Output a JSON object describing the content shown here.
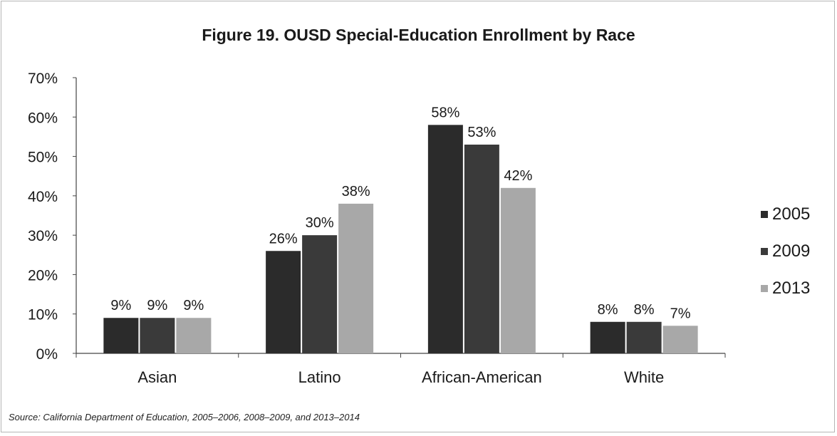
{
  "chart_data": {
    "type": "bar",
    "title": "Figure 19. OUSD Special-Education Enrollment by Race",
    "categories": [
      "Asian",
      "Latino",
      "African-American",
      "White"
    ],
    "series": [
      {
        "name": "2005",
        "values": [
          9,
          26,
          58,
          8
        ],
        "labels": [
          "9%",
          "26%",
          "58%",
          "8%"
        ],
        "color": "#2b2b2b"
      },
      {
        "name": "2009",
        "values": [
          9,
          30,
          53,
          8
        ],
        "labels": [
          "9%",
          "30%",
          "53%",
          "8%"
        ],
        "color": "#3a3a3a"
      },
      {
        "name": "2013",
        "values": [
          9,
          38,
          42,
          7
        ],
        "labels": [
          "9%",
          "38%",
          "42%",
          "7%"
        ],
        "color": "#a8a8a8"
      }
    ],
    "ylim": [
      0,
      70
    ],
    "yticks": [
      "0%",
      "10%",
      "20%",
      "30%",
      "40%",
      "50%",
      "60%",
      "70%"
    ],
    "xlabel": "",
    "ylabel": "",
    "grid": false,
    "legend_position": "right"
  },
  "source_note": "Source: California Department of Education, 2005–2006, 2008–2009, and 2013–2014"
}
